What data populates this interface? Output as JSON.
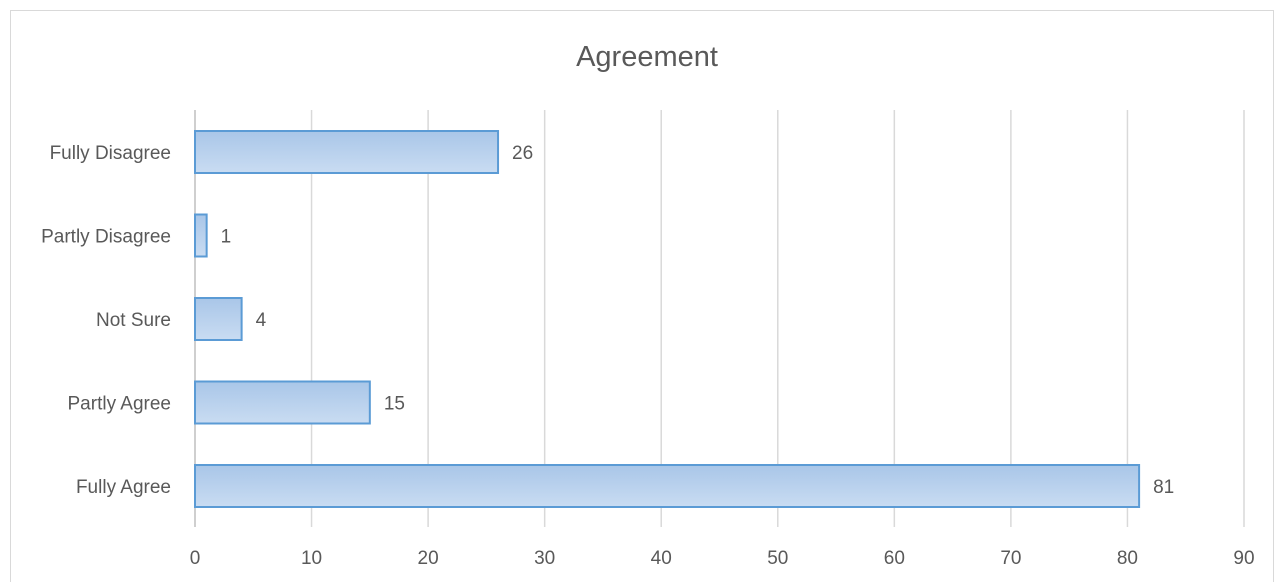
{
  "chart_data": {
    "type": "bar",
    "orientation": "horizontal",
    "title": "Agreement",
    "xlabel": "",
    "ylabel": "",
    "categories": [
      "Fully Disagree",
      "Partly Disagree",
      "Not Sure",
      "Partly Agree",
      "Fully Agree"
    ],
    "values": [
      26,
      1,
      4,
      15,
      81
    ],
    "xlim": [
      0,
      90
    ],
    "xticks": [
      0,
      10,
      20,
      30,
      40,
      50,
      60,
      70,
      80,
      90
    ],
    "grid": true,
    "legend": "none",
    "data_labels": true,
    "colors": {
      "bar_fill_top": "#a9c6e8",
      "bar_fill_bottom": "#c9dcf2",
      "bar_border": "#5b9bd5",
      "text": "#595959",
      "grid": "#d9d9d9"
    }
  }
}
